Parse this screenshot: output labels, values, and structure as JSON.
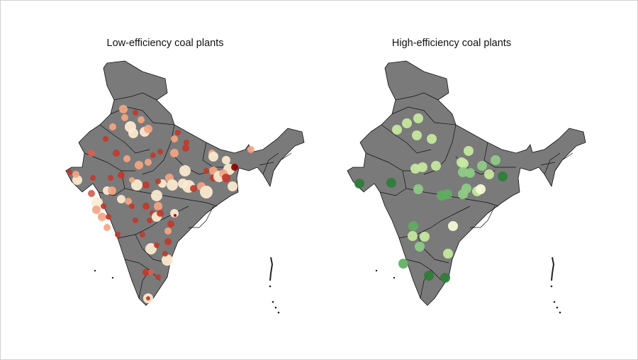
{
  "panels": [
    {
      "title": "Low-efficiency coal plants",
      "palette": [
        "#fdebd0",
        "#f4a582",
        "#d6604d",
        "#c0392b",
        "#8b0000"
      ]
    },
    {
      "title": "High-efficiency coal plants",
      "palette": [
        "#f7fcd8",
        "#c7e9a0",
        "#8fcc85",
        "#5fae5f",
        "#2e7d3a"
      ]
    }
  ],
  "map": {
    "region": "India",
    "land_color": "#7a7a7a",
    "border_color": "#111111"
  }
}
